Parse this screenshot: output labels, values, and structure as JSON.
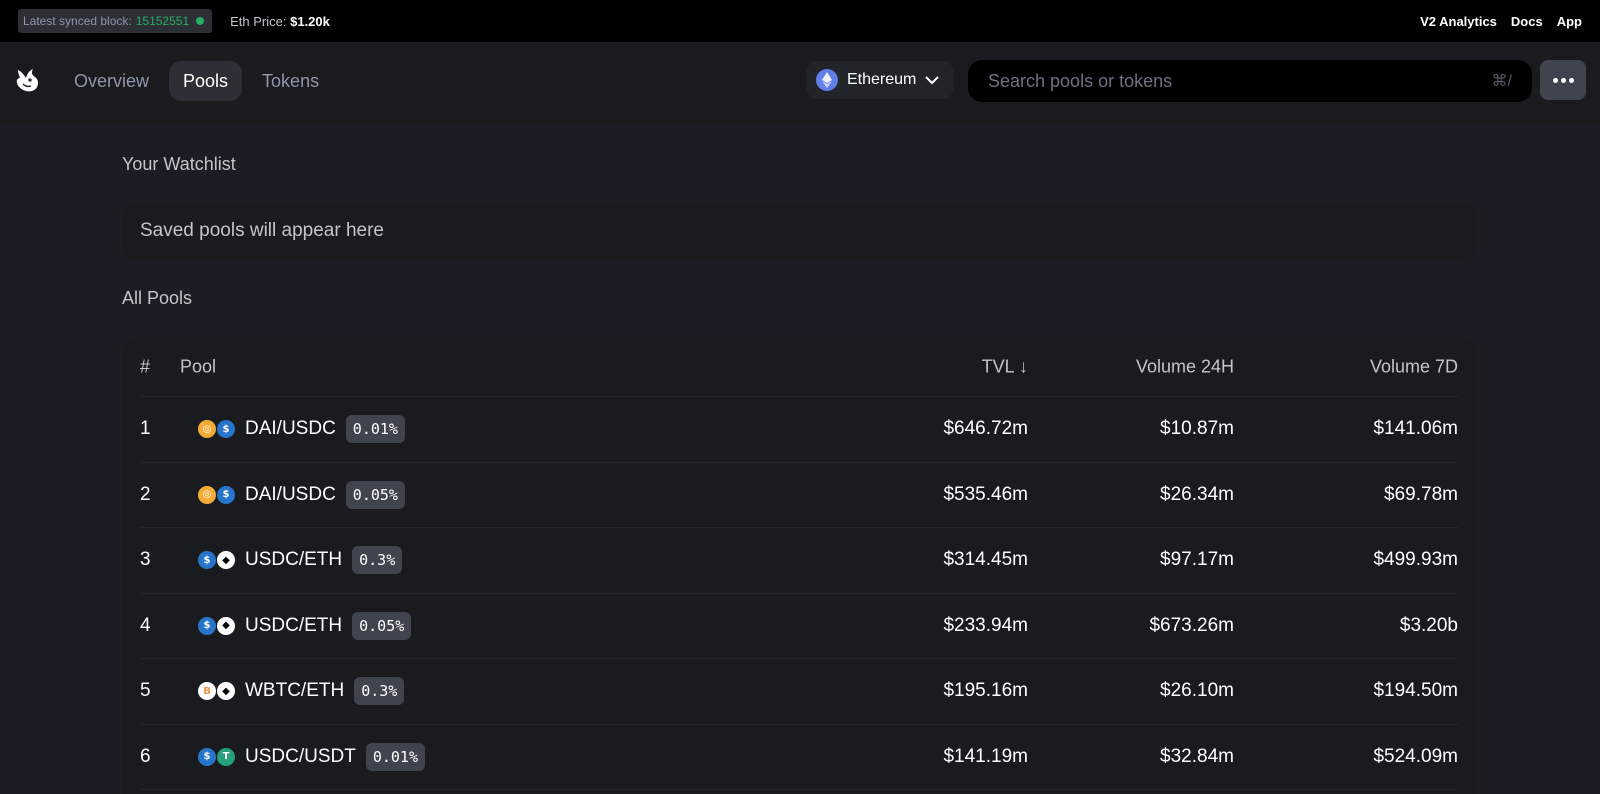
{
  "topbar": {
    "sync_label": "Latest synced block:",
    "sync_block": "15152551",
    "eth_price_label": "Eth Price:",
    "eth_price_value": "$1.20k",
    "links": [
      "V2 Analytics",
      "Docs",
      "App"
    ]
  },
  "header": {
    "nav": [
      "Overview",
      "Pools",
      "Tokens"
    ],
    "active_nav": "Pools",
    "network": "Ethereum",
    "search_placeholder": "Search pools or tokens",
    "search_shortcut": "⌘/"
  },
  "watchlist": {
    "title": "Your Watchlist",
    "empty_text": "Saved pools will appear here"
  },
  "pools": {
    "title": "All Pools",
    "columns": {
      "num": "#",
      "pool": "Pool",
      "tvl": "TVL ↓",
      "vol24": "Volume 24H",
      "vol7": "Volume 7D"
    },
    "rows": [
      {
        "num": "1",
        "pair": "DAI/USDC",
        "fee": "0.01%",
        "tvl": "$646.72m",
        "vol24": "$10.87m",
        "vol7": "$141.06m",
        "tokens": [
          "dai",
          "usdc"
        ]
      },
      {
        "num": "2",
        "pair": "DAI/USDC",
        "fee": "0.05%",
        "tvl": "$535.46m",
        "vol24": "$26.34m",
        "vol7": "$69.78m",
        "tokens": [
          "dai",
          "usdc"
        ]
      },
      {
        "num": "3",
        "pair": "USDC/ETH",
        "fee": "0.3%",
        "tvl": "$314.45m",
        "vol24": "$97.17m",
        "vol7": "$499.93m",
        "tokens": [
          "usdc",
          "eth"
        ]
      },
      {
        "num": "4",
        "pair": "USDC/ETH",
        "fee": "0.05%",
        "tvl": "$233.94m",
        "vol24": "$673.26m",
        "vol7": "$3.20b",
        "tokens": [
          "usdc",
          "eth"
        ]
      },
      {
        "num": "5",
        "pair": "WBTC/ETH",
        "fee": "0.3%",
        "tvl": "$195.16m",
        "vol24": "$26.10m",
        "vol7": "$194.50m",
        "tokens": [
          "wbtc",
          "eth"
        ]
      },
      {
        "num": "6",
        "pair": "USDC/USDT",
        "fee": "0.01%",
        "tvl": "$141.19m",
        "vol24": "$32.84m",
        "vol7": "$524.09m",
        "tokens": [
          "usdc",
          "usdt"
        ]
      }
    ]
  },
  "colors": {
    "background": "#1b1d24",
    "panel": "#191b1f",
    "sync_green": "#27ae60",
    "eth_blue": "#627eea"
  }
}
